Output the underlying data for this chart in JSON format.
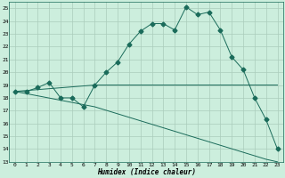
{
  "xlabel": "Humidex (Indice chaleur)",
  "bg_color": "#cceedd",
  "grid_color": "#aaccbb",
  "line_color": "#1a6b5a",
  "xlim": [
    -0.5,
    23.5
  ],
  "ylim": [
    13,
    25.5
  ],
  "yticks": [
    13,
    14,
    15,
    16,
    17,
    18,
    19,
    20,
    21,
    22,
    23,
    24,
    25
  ],
  "xticks": [
    0,
    1,
    2,
    3,
    4,
    5,
    6,
    7,
    8,
    9,
    10,
    11,
    12,
    13,
    14,
    15,
    16,
    17,
    18,
    19,
    20,
    21,
    22,
    23
  ],
  "main_line_x": [
    0,
    1,
    2,
    3,
    4,
    5,
    6,
    7,
    8,
    9,
    10,
    11,
    12,
    13,
    14,
    15,
    16,
    17,
    18,
    19,
    20,
    21,
    22,
    23
  ],
  "main_line_y": [
    18.5,
    18.5,
    18.8,
    19.2,
    18.0,
    18.0,
    17.3,
    19.0,
    20.0,
    20.8,
    22.2,
    23.2,
    23.8,
    23.8,
    23.3,
    25.1,
    24.5,
    24.7,
    23.3,
    21.2,
    20.2,
    18.0,
    16.3,
    14.0
  ],
  "upper_line_x": [
    0,
    7,
    23
  ],
  "upper_line_y": [
    18.5,
    19.0,
    19.0
  ],
  "lower_line_x": [
    0,
    7,
    22,
    23
  ],
  "lower_line_y": [
    18.5,
    17.3,
    13.2,
    13.0
  ],
  "marker": "D",
  "markersize": 2.5,
  "linewidth": 0.7,
  "tick_fontsize": 4.5,
  "xlabel_fontsize": 5.5
}
